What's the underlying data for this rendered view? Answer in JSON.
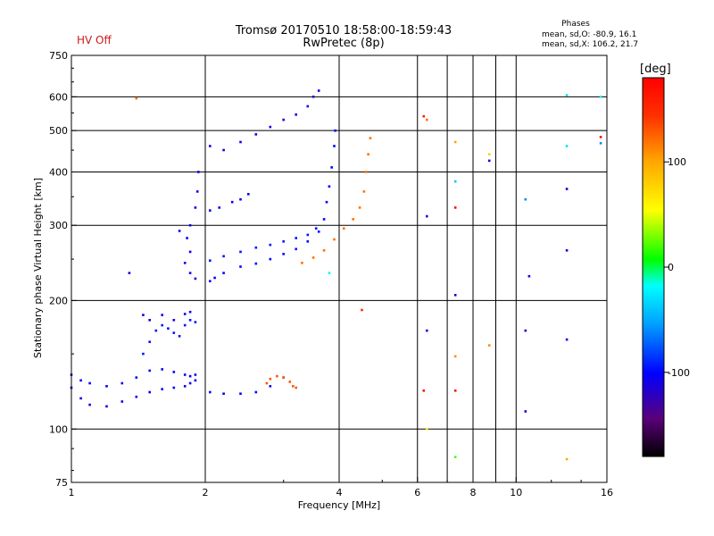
{
  "header": {
    "status": "HV Off",
    "title_line1": "Tromsø 20170510 18:58:00-18:59:43",
    "title_line2": "RwPretec (8p)",
    "phases_title": "Phases",
    "phases_o": "mean, sd,O: -80.9, 16.1",
    "phases_x": "mean, sd,X: 106.2, 21.7"
  },
  "colorbar": {
    "label": "[deg]",
    "ticks": [
      "100",
      "0",
      "-100"
    ],
    "tick_values": [
      100,
      0,
      -100
    ],
    "range": [
      -180,
      180
    ]
  },
  "chart_data": {
    "type": "scatter",
    "title": "Tromsø 20170510 18:58:00-18:59:43",
    "subtitle": "RwPretec (8p)",
    "xlabel": "Frequency [MHz]",
    "ylabel": "Stationary phase Virtual Height [km]",
    "x_scale": "log",
    "y_scale": "log",
    "xlim": [
      1,
      16
    ],
    "ylim": [
      75,
      750
    ],
    "x_ticks": [
      1,
      2,
      4,
      6,
      8,
      10,
      16
    ],
    "x_tick_labels": [
      "1",
      "2",
      "4",
      "6",
      "8",
      "10",
      "16"
    ],
    "y_ticks": [
      75,
      100,
      200,
      300,
      400,
      500,
      600,
      750
    ],
    "y_tick_labels": [
      "75",
      "100",
      "200",
      "300",
      "400",
      "500",
      "600",
      "750"
    ],
    "x_gridlines": [
      2,
      4,
      6,
      7,
      8,
      9,
      10,
      16
    ],
    "y_gridlines": [
      100,
      200,
      300,
      400,
      500,
      600
    ],
    "colour_quantity": "phase [deg]",
    "traces": [
      {
        "name": "",
        "phase": -105,
        "points": [
          [
            1.0,
            125
          ],
          [
            1.05,
            118
          ],
          [
            1.1,
            114
          ],
          [
            1.2,
            113
          ],
          [
            1.3,
            116
          ],
          [
            1.4,
            119
          ],
          [
            1.5,
            122
          ],
          [
            1.6,
            124
          ],
          [
            1.7,
            125
          ],
          [
            1.8,
            126
          ],
          [
            1.85,
            128
          ],
          [
            1.9,
            130
          ]
        ]
      },
      {
        "name": "",
        "phase": -100,
        "points": [
          [
            1.0,
            134
          ],
          [
            1.05,
            130
          ],
          [
            1.1,
            128
          ],
          [
            1.2,
            126
          ],
          [
            1.3,
            128
          ],
          [
            1.4,
            132
          ],
          [
            1.5,
            137
          ],
          [
            1.6,
            138
          ],
          [
            1.7,
            136
          ],
          [
            1.8,
            134
          ],
          [
            1.85,
            133
          ],
          [
            1.9,
            134
          ]
        ]
      },
      {
        "name": "",
        "phase": -95,
        "points": [
          [
            1.45,
            150
          ],
          [
            1.5,
            160
          ],
          [
            1.55,
            170
          ],
          [
            1.6,
            175
          ],
          [
            1.65,
            172
          ],
          [
            1.7,
            168
          ],
          [
            1.75,
            165
          ],
          [
            1.8,
            175
          ],
          [
            1.85,
            180
          ],
          [
            1.9,
            178
          ]
        ]
      },
      {
        "name": "",
        "phase": -110,
        "points": [
          [
            1.45,
            185
          ],
          [
            1.5,
            180
          ],
          [
            1.6,
            185
          ],
          [
            1.7,
            180
          ],
          [
            1.8,
            186
          ],
          [
            1.85,
            188
          ]
        ]
      },
      {
        "name": "",
        "phase": -105,
        "points": [
          [
            1.9,
            225
          ],
          [
            1.85,
            232
          ],
          [
            1.8,
            245
          ],
          [
            1.85,
            260
          ],
          [
            1.82,
            280
          ],
          [
            1.85,
            300
          ],
          [
            1.9,
            330
          ],
          [
            1.92,
            360
          ],
          [
            1.93,
            400
          ]
        ]
      },
      {
        "name": "",
        "phase": -100,
        "points": [
          [
            2.05,
            222
          ],
          [
            2.1,
            226
          ],
          [
            2.2,
            232
          ],
          [
            2.4,
            240
          ],
          [
            2.6,
            244
          ],
          [
            2.8,
            250
          ],
          [
            3.0,
            257
          ],
          [
            3.2,
            264
          ],
          [
            3.4,
            275
          ],
          [
            3.6,
            290
          ],
          [
            3.7,
            310
          ],
          [
            3.75,
            340
          ],
          [
            3.8,
            370
          ],
          [
            3.85,
            410
          ],
          [
            3.9,
            460
          ],
          [
            3.92,
            500
          ]
        ]
      },
      {
        "name": "",
        "phase": -95,
        "points": [
          [
            2.05,
            248
          ],
          [
            2.2,
            254
          ],
          [
            2.4,
            260
          ],
          [
            2.6,
            266
          ],
          [
            2.8,
            270
          ],
          [
            3.0,
            275
          ],
          [
            3.2,
            280
          ],
          [
            3.4,
            285
          ],
          [
            3.55,
            295
          ]
        ]
      },
      {
        "name": "",
        "phase": 120,
        "points": [
          [
            3.3,
            245
          ],
          [
            3.5,
            252
          ],
          [
            3.7,
            262
          ],
          [
            3.9,
            278
          ],
          [
            4.1,
            295
          ],
          [
            4.3,
            310
          ],
          [
            4.45,
            330
          ],
          [
            4.55,
            360
          ],
          [
            4.6,
            400
          ],
          [
            4.65,
            440
          ],
          [
            4.7,
            480
          ]
        ]
      },
      {
        "name": "",
        "phase": -100,
        "points": [
          [
            2.05,
            122
          ],
          [
            2.2,
            121
          ],
          [
            2.4,
            121
          ],
          [
            2.6,
            122
          ],
          [
            2.8,
            126
          ],
          [
            3.0,
            132
          ]
        ]
      },
      {
        "name": "",
        "phase": 130,
        "points": [
          [
            2.75,
            128
          ],
          [
            2.8,
            131
          ],
          [
            2.9,
            133
          ],
          [
            3.0,
            132
          ],
          [
            3.1,
            129
          ],
          [
            3.15,
            126
          ],
          [
            3.2,
            125
          ]
        ]
      },
      {
        "name": "",
        "phase": -110,
        "points": [
          [
            2.05,
            460
          ],
          [
            2.2,
            450
          ],
          [
            2.4,
            470
          ],
          [
            2.6,
            490
          ],
          [
            2.8,
            510
          ],
          [
            3.0,
            530
          ],
          [
            3.2,
            545
          ],
          [
            3.4,
            570
          ],
          [
            3.5,
            600
          ],
          [
            3.6,
            620
          ]
        ]
      },
      {
        "name": "",
        "phase": -105,
        "points": [
          [
            2.05,
            325
          ],
          [
            2.15,
            330
          ],
          [
            2.3,
            340
          ],
          [
            2.4,
            345
          ],
          [
            2.5,
            355
          ]
        ]
      }
    ],
    "isolated_points": [
      {
        "x": 1.35,
        "y": 232,
        "phase": -110
      },
      {
        "x": 1.4,
        "y": 595,
        "phase": 120
      },
      {
        "x": 1.75,
        "y": 291,
        "phase": -110
      },
      {
        "x": 4.5,
        "y": 190,
        "phase": 150
      },
      {
        "x": 3.8,
        "y": 232,
        "phase": -20
      },
      {
        "x": 6.2,
        "y": 540,
        "phase": 160
      },
      {
        "x": 6.3,
        "y": 530,
        "phase": 120
      },
      {
        "x": 6.3,
        "y": 315,
        "phase": -110
      },
      {
        "x": 6.3,
        "y": 170,
        "phase": -110
      },
      {
        "x": 6.2,
        "y": 123,
        "phase": 170
      },
      {
        "x": 6.3,
        "y": 100,
        "phase": 60
      },
      {
        "x": 7.3,
        "y": 470,
        "phase": 100
      },
      {
        "x": 7.3,
        "y": 380,
        "phase": -40
      },
      {
        "x": 7.3,
        "y": 330,
        "phase": 170
      },
      {
        "x": 7.3,
        "y": 206,
        "phase": -110
      },
      {
        "x": 7.3,
        "y": 148,
        "phase": 110
      },
      {
        "x": 7.3,
        "y": 123,
        "phase": 170
      },
      {
        "x": 7.3,
        "y": 86,
        "phase": 20
      },
      {
        "x": 8.7,
        "y": 440,
        "phase": 80
      },
      {
        "x": 8.7,
        "y": 425,
        "phase": -110
      },
      {
        "x": 8.7,
        "y": 157,
        "phase": 110
      },
      {
        "x": 10.5,
        "y": 345,
        "phase": -60
      },
      {
        "x": 10.7,
        "y": 228,
        "phase": -110
      },
      {
        "x": 10.5,
        "y": 170,
        "phase": -110
      },
      {
        "x": 10.5,
        "y": 110,
        "phase": -110
      },
      {
        "x": 13,
        "y": 605,
        "phase": -30
      },
      {
        "x": 13,
        "y": 460,
        "phase": -30
      },
      {
        "x": 13,
        "y": 365,
        "phase": -110
      },
      {
        "x": 13,
        "y": 262,
        "phase": -110
      },
      {
        "x": 13,
        "y": 162,
        "phase": -110
      },
      {
        "x": 13,
        "y": 85,
        "phase": 100
      },
      {
        "x": 15.5,
        "y": 600,
        "phase": -20
      },
      {
        "x": 15.5,
        "y": 483,
        "phase": 170
      },
      {
        "x": 15.5,
        "y": 467,
        "phase": -60
      }
    ]
  }
}
